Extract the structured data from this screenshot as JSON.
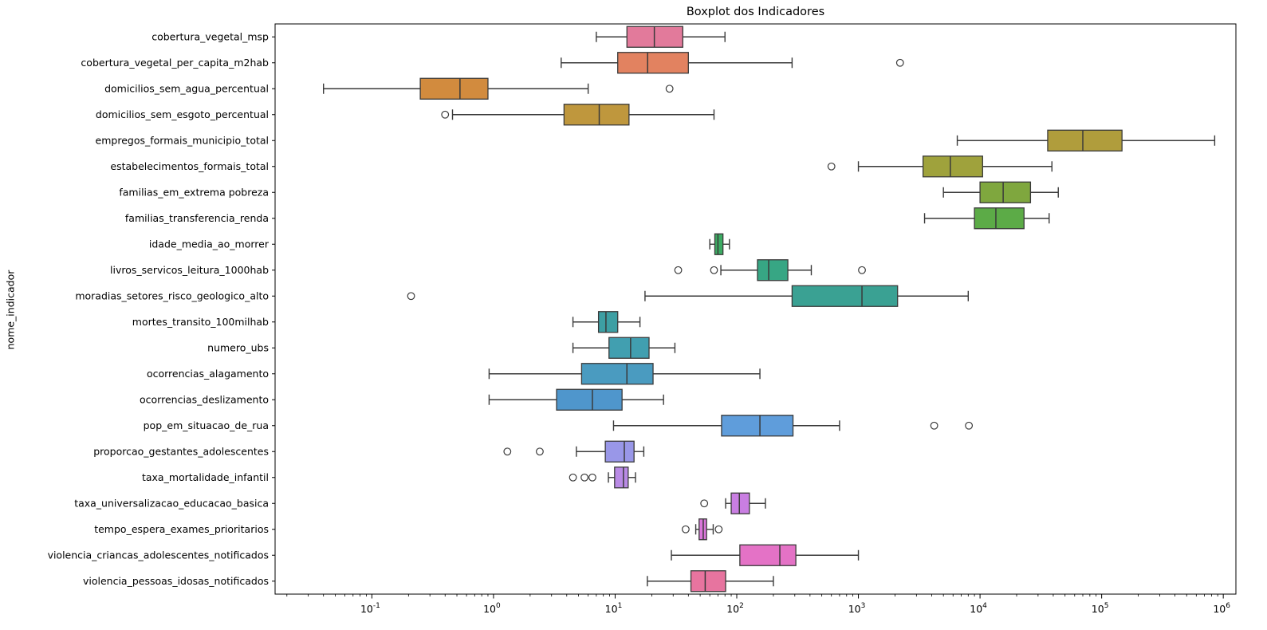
{
  "chart_data": {
    "type": "boxplot",
    "orientation": "horizontal",
    "title": "Boxplot dos Indicadores",
    "xlabel": "",
    "ylabel": "nome_indicador",
    "x_scale": "log",
    "grid": false,
    "legend": "none",
    "xlim": [
      0.016,
      1270000
    ],
    "x_major_tick_exponents": [
      -1,
      0,
      1,
      2,
      3,
      4,
      5,
      6
    ],
    "x_major_tick_values": [
      0.1,
      1,
      10,
      100,
      1000,
      10000,
      100000,
      1000000
    ],
    "edge_color": "#3a3a3a",
    "categories": [
      "cobertura_vegetal_msp",
      "cobertura_vegetal_per_capita_m2hab",
      "domicilios_sem_agua_percentual",
      "domicilios_sem_esgoto_percentual",
      "empregos_formais_municipio_total",
      "estabelecimentos_formais_total",
      "familias_em_extrema pobreza",
      "familias_transferencia_renda",
      "idade_media_ao_morrer",
      "livros_servicos_leitura_1000hab",
      "moradias_setores_risco_geologico_alto",
      "mortes_transito_100milhab",
      "numero_ubs",
      "ocorrencias_alagamento",
      "ocorrencias_deslizamento",
      "pop_em_situacao_de_rua",
      "proporcao_gestantes_adolescentes",
      "taxa_mortalidade_infantil",
      "taxa_universalizacao_educacao_basica",
      "tempo_espera_exames_prioritarios",
      "violencia_criancas_adolescentes_notificados",
      "violencia_pessoas_idosas_notificados"
    ],
    "series": [
      {
        "name": "cobertura_vegetal_msp",
        "whisker_low": 7,
        "q1": 12.5,
        "median": 21,
        "q3": 36,
        "whisker_high": 80,
        "outliers": [],
        "color": "#e27a9b"
      },
      {
        "name": "cobertura_vegetal_per_capita_m2hab",
        "whisker_low": 3.6,
        "q1": 10.5,
        "median": 18.5,
        "q3": 40,
        "whisker_high": 285,
        "outliers": [
          2200
        ],
        "color": "#e28260"
      },
      {
        "name": "domicilios_sem_agua_percentual",
        "whisker_low": 0.04,
        "q1": 0.25,
        "median": 0.53,
        "q3": 0.9,
        "whisker_high": 6,
        "outliers": [
          28
        ],
        "color": "#d28b3e"
      },
      {
        "name": "domicilios_sem_esgoto_percentual",
        "whisker_low": 0.46,
        "q1": 3.8,
        "median": 7.4,
        "q3": 13,
        "whisker_high": 65,
        "outliers": [
          0.4
        ],
        "color": "#bf973d"
      },
      {
        "name": "empregos_formais_municipio_total",
        "whisker_low": 6500,
        "q1": 36000,
        "median": 70000,
        "q3": 147000,
        "whisker_high": 850000,
        "outliers": [],
        "color": "#b09d3c"
      },
      {
        "name": "estabelecimentos_formais_total",
        "whisker_low": 1000,
        "q1": 3400,
        "median": 5700,
        "q3": 10500,
        "whisker_high": 39000,
        "outliers": [
          600
        ],
        "color": "#9fa23c"
      },
      {
        "name": "familias_em_extrema pobreza",
        "whisker_low": 5000,
        "q1": 10000,
        "median": 15500,
        "q3": 26000,
        "whisker_high": 44000,
        "outliers": [],
        "color": "#7fa73e"
      },
      {
        "name": "familias_transferencia_renda",
        "whisker_low": 3500,
        "q1": 9000,
        "median": 13500,
        "q3": 23000,
        "whisker_high": 37000,
        "outliers": [],
        "color": "#5cab47"
      },
      {
        "name": "idade_media_ao_morrer",
        "whisker_low": 60,
        "q1": 66,
        "median": 70,
        "q3": 77,
        "whisker_high": 87,
        "outliers": [],
        "color": "#3cab63"
      },
      {
        "name": "livros_servicos_leitura_1000hab",
        "whisker_low": 74,
        "q1": 148,
        "median": 183,
        "q3": 263,
        "whisker_high": 410,
        "outliers": [
          33,
          65,
          1070
        ],
        "color": "#37a684"
      },
      {
        "name": "moradias_setores_risco_geologico_alto",
        "whisker_low": 17.6,
        "q1": 285,
        "median": 1070,
        "q3": 2100,
        "whisker_high": 8000,
        "outliers": [
          0.21
        ],
        "color": "#3aa193"
      },
      {
        "name": "mortes_transito_100milhab",
        "whisker_low": 4.5,
        "q1": 7.3,
        "median": 8.4,
        "q3": 10.5,
        "whisker_high": 16,
        "outliers": [],
        "color": "#3d9fa3"
      },
      {
        "name": "numero_ubs",
        "whisker_low": 4.5,
        "q1": 8.9,
        "median": 13.4,
        "q3": 19,
        "whisker_high": 31,
        "outliers": [],
        "color": "#419fb0"
      },
      {
        "name": "ocorrencias_alagamento",
        "whisker_low": 0.92,
        "q1": 5.3,
        "median": 12.5,
        "q3": 20.5,
        "whisker_high": 155,
        "outliers": [],
        "color": "#4a9bc0"
      },
      {
        "name": "ocorrencias_deslizamento",
        "whisker_low": 0.92,
        "q1": 3.3,
        "median": 6.5,
        "q3": 11.4,
        "whisker_high": 25,
        "outliers": [],
        "color": "#4f96cc"
      },
      {
        "name": "pop_em_situacao_de_rua",
        "whisker_low": 9.7,
        "q1": 75,
        "median": 155,
        "q3": 290,
        "whisker_high": 700,
        "outliers": [
          4200,
          8100
        ],
        "color": "#5f9ddb"
      },
      {
        "name": "proporcao_gestantes_adolescentes",
        "whisker_low": 4.8,
        "q1": 8.3,
        "median": 11.9,
        "q3": 14.3,
        "whisker_high": 17.2,
        "outliers": [
          1.3,
          2.4
        ],
        "color": "#9997e8"
      },
      {
        "name": "taxa_mortalidade_infantil",
        "whisker_low": 8.8,
        "q1": 9.9,
        "median": 11.7,
        "q3": 12.8,
        "whisker_high": 14.7,
        "outliers": [
          4.5,
          5.6,
          6.5
        ],
        "color": "#b98ae5"
      },
      {
        "name": "taxa_universalizacao_educacao_basica",
        "whisker_low": 81,
        "q1": 90,
        "median": 105,
        "q3": 127,
        "whisker_high": 172,
        "outliers": [
          54
        ],
        "color": "#c97ee2"
      },
      {
        "name": "tempo_espera_exames_prioritarios",
        "whisker_low": 46,
        "q1": 49,
        "median": 53,
        "q3": 56.5,
        "whisker_high": 64,
        "outliers": [
          38,
          71
        ],
        "color": "#da76da"
      },
      {
        "name": "violencia_criancas_adolescentes_notificados",
        "whisker_low": 29,
        "q1": 106,
        "median": 226,
        "q3": 306,
        "whisker_high": 1000,
        "outliers": [],
        "color": "#e472c6"
      },
      {
        "name": "violencia_pessoas_idosas_notificados",
        "whisker_low": 18.4,
        "q1": 42,
        "median": 55,
        "q3": 81,
        "whisker_high": 200,
        "outliers": [],
        "color": "#e7749f"
      }
    ]
  }
}
